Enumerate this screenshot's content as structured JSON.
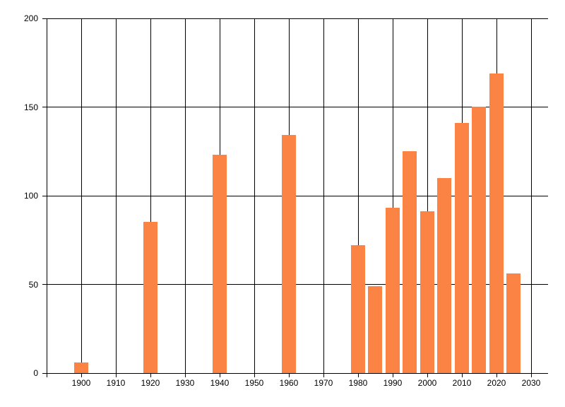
{
  "chart_data": {
    "type": "bar",
    "title": "",
    "xlabel": "",
    "ylabel": "",
    "x": [
      1900,
      1920,
      1940,
      1960,
      1980,
      1985,
      1990,
      1995,
      2000,
      2005,
      2010,
      2015,
      2020,
      2025
    ],
    "values": [
      6,
      85,
      123,
      134,
      72,
      49,
      93,
      125,
      91,
      110,
      141,
      150,
      169,
      56
    ],
    "xlim": [
      1890,
      2035
    ],
    "ylim": [
      0,
      200
    ],
    "x_ticks": [
      1900,
      1910,
      1920,
      1930,
      1940,
      1950,
      1960,
      1970,
      1980,
      1990,
      2000,
      2010,
      2020,
      2030
    ],
    "y_ticks": [
      0,
      50,
      100,
      150,
      200
    ],
    "grid": true,
    "legend": "none",
    "bar_color": "#fb8444",
    "grid_color": "#000000",
    "axis_color": "#000000",
    "label_color": "#000000",
    "background": "#ffffff"
  }
}
